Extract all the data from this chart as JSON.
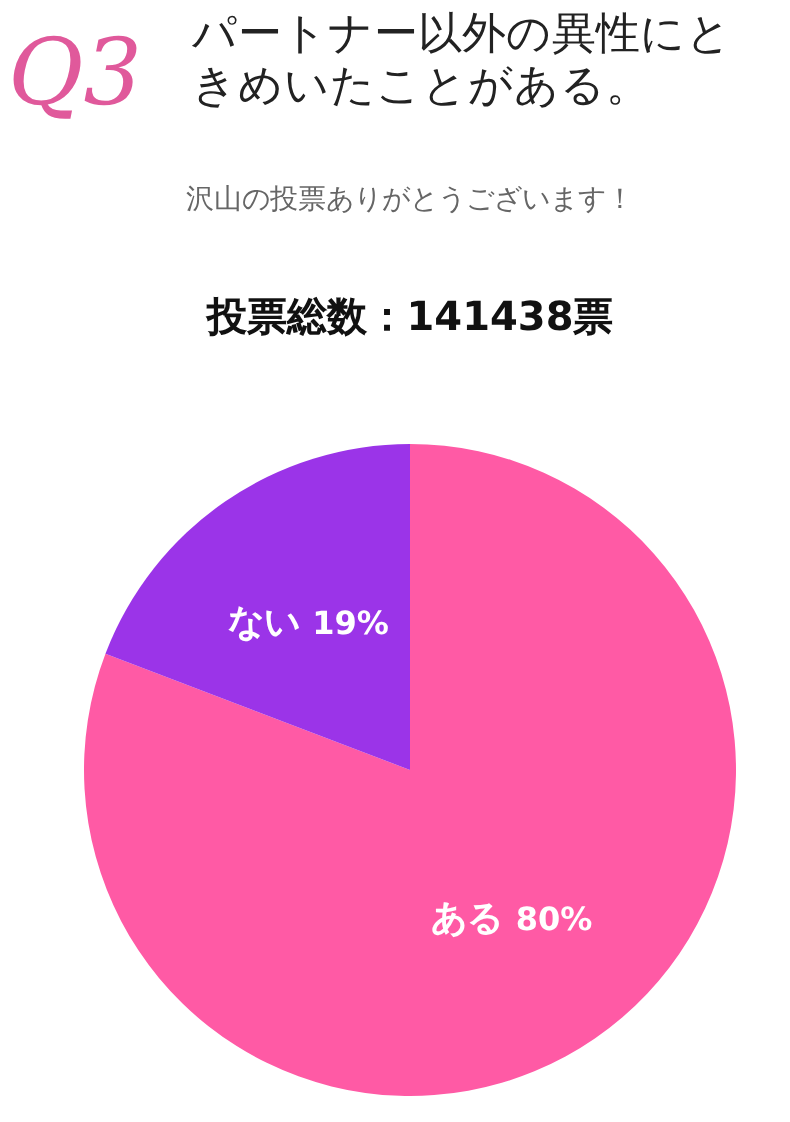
{
  "chart_data": {
    "type": "pie",
    "title": "Q3",
    "subtitle": "パートナー以外の異性にときめいたことがある。",
    "annotations": [
      "沢山の投票ありがとうございます！",
      "投票総数：141438票"
    ],
    "categories": [
      "ある",
      "ない"
    ],
    "values": [
      80,
      19
    ],
    "value_labels": [
      "80%",
      "19%"
    ],
    "colors": [
      "#ff5aa5",
      "#9b34e8"
    ]
  }
}
